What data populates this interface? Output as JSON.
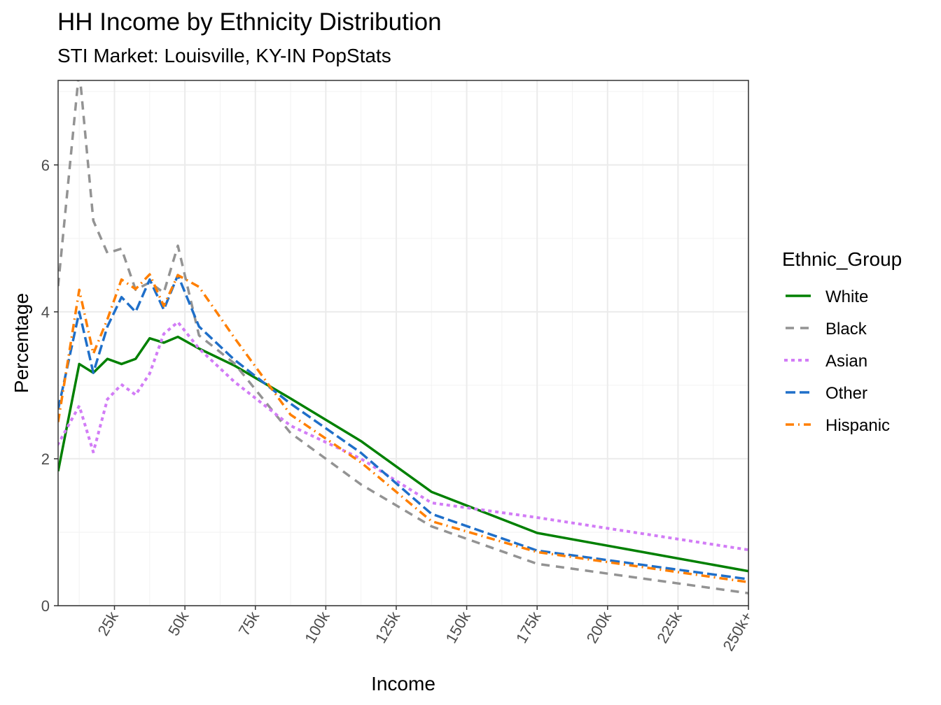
{
  "chart_data": {
    "type": "line",
    "title": "HH Income by Ethnicity Distribution",
    "subtitle": "STI Market: Louisville, KY-IN PopStats",
    "xlabel": "Income",
    "ylabel": "Percentage",
    "xlim": [
      5,
      250
    ],
    "ylim": [
      0,
      7.15
    ],
    "x_ticks": [
      25,
      50,
      75,
      100,
      125,
      150,
      175,
      200,
      225,
      250
    ],
    "x_tick_labels": [
      "25k",
      "50k",
      "75k",
      "100k",
      "125k",
      "150k",
      "175k",
      "200k",
      "225k",
      "250k+"
    ],
    "y_ticks": [
      0,
      2,
      4,
      6
    ],
    "y_tick_labels": [
      "0",
      "2",
      "4",
      "6"
    ],
    "grid": true,
    "legend": {
      "title": "Ethnic_Group",
      "position": "right"
    },
    "x": [
      5,
      12.5,
      17.5,
      22.5,
      27.5,
      32.5,
      37.5,
      42.5,
      47.5,
      55,
      67.5,
      87.5,
      112.5,
      137.5,
      175,
      250
    ],
    "series": [
      {
        "name": "White",
        "color": "#008000",
        "dash": "solid",
        "values": [
          1.83,
          3.29,
          3.17,
          3.36,
          3.29,
          3.36,
          3.64,
          3.58,
          3.66,
          3.5,
          3.27,
          2.82,
          2.24,
          1.55,
          0.99,
          0.47
        ]
      },
      {
        "name": "Black",
        "color": "#939393",
        "dash": "dashed",
        "values": [
          4.35,
          7.3,
          5.24,
          4.8,
          4.86,
          4.3,
          4.4,
          4.26,
          4.9,
          3.68,
          3.3,
          2.35,
          1.65,
          1.08,
          0.57,
          0.17
        ]
      },
      {
        "name": "Asian",
        "color": "#d27cf6",
        "dash": "dotted",
        "values": [
          2.2,
          2.72,
          2.09,
          2.81,
          3.01,
          2.87,
          3.16,
          3.7,
          3.86,
          3.5,
          3.05,
          2.45,
          2.0,
          1.4,
          1.2,
          0.76
        ]
      },
      {
        "name": "Other",
        "color": "#1f6fc9",
        "dash": "longdash",
        "values": [
          2.67,
          4.0,
          3.17,
          3.8,
          4.2,
          4.0,
          4.44,
          4.03,
          4.5,
          3.8,
          3.35,
          2.75,
          2.08,
          1.25,
          0.75,
          0.36
        ]
      },
      {
        "name": "Hispanic",
        "color": "#ff7f00",
        "dash": "dotdash",
        "values": [
          2.5,
          4.3,
          3.43,
          3.9,
          4.44,
          4.31,
          4.51,
          4.08,
          4.5,
          4.34,
          3.65,
          2.6,
          1.95,
          1.15,
          0.73,
          0.32
        ]
      }
    ]
  }
}
